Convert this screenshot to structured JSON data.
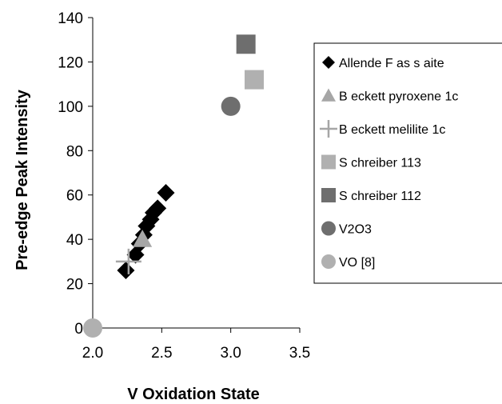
{
  "chart_data": {
    "type": "scatter",
    "title": "",
    "xlabel": "V Oxidation State",
    "ylabel": "Pre-edge Peak Intensity",
    "xlim": [
      2.0,
      3.5
    ],
    "ylim": [
      0,
      140
    ],
    "xticks": [
      "2.0",
      "2.5",
      "3.0",
      "3.5"
    ],
    "yticks": [
      "0",
      "20",
      "40",
      "60",
      "80",
      "100",
      "120",
      "140"
    ],
    "grid": false,
    "legend_position": "right",
    "series": [
      {
        "name": "Allende F as s aite",
        "marker": "diamond",
        "color": "#000000",
        "points": [
          {
            "x": 2.24,
            "y": 26
          },
          {
            "x": 2.31,
            "y": 33
          },
          {
            "x": 2.34,
            "y": 38
          },
          {
            "x": 2.37,
            "y": 42
          },
          {
            "x": 2.39,
            "y": 46
          },
          {
            "x": 2.42,
            "y": 49
          },
          {
            "x": 2.44,
            "y": 52
          },
          {
            "x": 2.47,
            "y": 54
          },
          {
            "x": 2.53,
            "y": 61
          }
        ]
      },
      {
        "name": "B eckett pyroxene 1c",
        "marker": "triangle",
        "color": "#a6a6a6",
        "points": [
          {
            "x": 2.36,
            "y": 40
          }
        ]
      },
      {
        "name": "B eckett melilite 1c",
        "marker": "plus",
        "color": "#a6a6a6",
        "points": [
          {
            "x": 2.26,
            "y": 30
          }
        ]
      },
      {
        "name": "S chreiber 113",
        "marker": "square",
        "color": "#b0b0b0",
        "points": [
          {
            "x": 3.17,
            "y": 112
          }
        ]
      },
      {
        "name": "S chreiber 112",
        "marker": "square",
        "color": "#6e6e6e",
        "points": [
          {
            "x": 3.11,
            "y": 128
          }
        ]
      },
      {
        "name": "V2O3",
        "marker": "circle",
        "color": "#6e6e6e",
        "points": [
          {
            "x": 3.0,
            "y": 100
          }
        ]
      },
      {
        "name": "VO [8]",
        "marker": "circle",
        "color": "#b0b0b0",
        "points": [
          {
            "x": 2.0,
            "y": 0
          }
        ]
      }
    ]
  }
}
